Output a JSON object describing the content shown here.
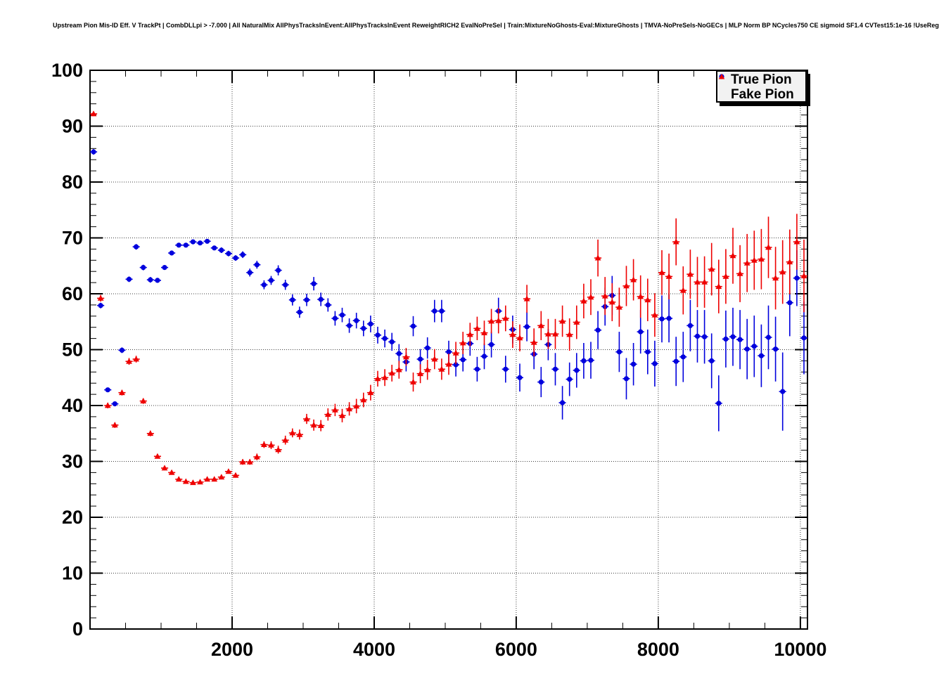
{
  "chart_data": {
    "type": "scatter",
    "title": "Upstream Pion Mis-ID Eff. V TrackPt | CombDLLpi > -7.000 | All NaturalMix AllPhysTracksInEvent:AllPhysTracksInEvent ReweightRICH2 EvalNoPreSel | Train:MixtureNoGhosts-Eval:MixtureGhosts | TMVA-NoPreSels-NoGECs | MLP Norm BP NCycles750 CE sigmoid SF1.4 CVTest15:1e-16 !UseReg",
    "xlabel": "",
    "ylabel": "",
    "xlim": [
      0,
      10100
    ],
    "ylim": [
      0,
      100
    ],
    "x_major_ticks": [
      2000,
      4000,
      6000,
      8000,
      10000
    ],
    "x_minor_step": 500,
    "y_major_step": 10,
    "y_minor_step": 2,
    "y_tick_labels": [
      "0",
      "10",
      "20",
      "30",
      "40",
      "50",
      "60",
      "70",
      "80",
      "90",
      "100"
    ],
    "grid": "dotted",
    "frame_color": "#000000",
    "legend": {
      "position": "top-right",
      "entries": [
        {
          "label": "True Pion",
          "marker": "circle",
          "color": "#0000dd"
        },
        {
          "label": "Fake Pion",
          "marker": "triangle",
          "color": "#ee0000"
        }
      ]
    },
    "series": [
      {
        "name": "True Pion",
        "marker": "circle",
        "color": "#0000dd",
        "xerr": 50,
        "points": [
          [
            50,
            85.4,
            0.5
          ],
          [
            150,
            57.9,
            0.5
          ],
          [
            250,
            42.8,
            0.4
          ],
          [
            350,
            40.3,
            0.4
          ],
          [
            450,
            49.9,
            0.5
          ],
          [
            550,
            62.6,
            0.5
          ],
          [
            650,
            68.4,
            0.5
          ],
          [
            750,
            64.7,
            0.5
          ],
          [
            850,
            62.5,
            0.5
          ],
          [
            950,
            62.4,
            0.4
          ],
          [
            1050,
            64.7,
            0.4
          ],
          [
            1150,
            67.3,
            0.4
          ],
          [
            1250,
            68.7,
            0.4
          ],
          [
            1350,
            68.7,
            0.4
          ],
          [
            1450,
            69.3,
            0.4
          ],
          [
            1550,
            69.1,
            0.4
          ],
          [
            1650,
            69.4,
            0.4
          ],
          [
            1750,
            68.2,
            0.4
          ],
          [
            1850,
            67.8,
            0.5
          ],
          [
            1950,
            67.2,
            0.5
          ],
          [
            2050,
            66.4,
            0.5
          ],
          [
            2150,
            67.0,
            0.6
          ],
          [
            2250,
            63.8,
            0.7
          ],
          [
            2350,
            65.2,
            0.7
          ],
          [
            2450,
            61.6,
            0.8
          ],
          [
            2550,
            62.4,
            0.8
          ],
          [
            2650,
            64.2,
            0.9
          ],
          [
            2750,
            61.6,
            0.9
          ],
          [
            2850,
            58.9,
            1.0
          ],
          [
            2950,
            56.7,
            1.0
          ],
          [
            3050,
            58.9,
            1.1
          ],
          [
            3150,
            61.8,
            1.2
          ],
          [
            3250,
            59.0,
            1.2
          ],
          [
            3350,
            58.0,
            1.2
          ],
          [
            3450,
            55.6,
            1.3
          ],
          [
            3550,
            56.2,
            1.3
          ],
          [
            3650,
            54.3,
            1.3
          ],
          [
            3750,
            55.2,
            1.4
          ],
          [
            3850,
            53.8,
            1.4
          ],
          [
            3950,
            54.6,
            1.5
          ],
          [
            4050,
            52.6,
            1.5
          ],
          [
            4150,
            52.0,
            1.6
          ],
          [
            4250,
            51.4,
            1.6
          ],
          [
            4350,
            49.3,
            1.7
          ],
          [
            4450,
            47.8,
            1.7
          ],
          [
            4550,
            54.2,
            1.8
          ],
          [
            4650,
            48.3,
            1.8
          ],
          [
            4750,
            50.3,
            1.9
          ],
          [
            4850,
            56.9,
            2.0
          ],
          [
            4950,
            56.9,
            2.0
          ],
          [
            5050,
            49.6,
            2.0
          ],
          [
            5150,
            47.3,
            2.1
          ],
          [
            5250,
            48.2,
            2.1
          ],
          [
            5350,
            51.1,
            2.2
          ],
          [
            5450,
            46.5,
            2.2
          ],
          [
            5550,
            48.8,
            2.3
          ],
          [
            5650,
            50.9,
            2.3
          ],
          [
            5750,
            56.9,
            2.4
          ],
          [
            5850,
            46.5,
            2.4
          ],
          [
            5950,
            53.6,
            2.5
          ],
          [
            6050,
            45.0,
            2.5
          ],
          [
            6150,
            54.1,
            2.6
          ],
          [
            6250,
            49.2,
            2.7
          ],
          [
            6350,
            44.2,
            2.7
          ],
          [
            6450,
            50.9,
            2.8
          ],
          [
            6550,
            46.5,
            2.9
          ],
          [
            6650,
            40.5,
            3.0
          ],
          [
            6750,
            44.7,
            3.0
          ],
          [
            6850,
            46.3,
            3.1
          ],
          [
            6950,
            48.0,
            3.2
          ],
          [
            7050,
            48.1,
            3.3
          ],
          [
            7150,
            53.5,
            3.4
          ],
          [
            7250,
            57.7,
            3.4
          ],
          [
            7350,
            59.7,
            3.5
          ],
          [
            7450,
            49.6,
            3.6
          ],
          [
            7550,
            44.8,
            3.7
          ],
          [
            7650,
            47.4,
            3.8
          ],
          [
            7750,
            53.2,
            3.9
          ],
          [
            7850,
            49.6,
            4.0
          ],
          [
            7950,
            47.5,
            4.1
          ],
          [
            8050,
            55.5,
            4.2
          ],
          [
            8150,
            55.6,
            4.3
          ],
          [
            8250,
            47.9,
            4.4
          ],
          [
            8350,
            48.7,
            4.5
          ],
          [
            8450,
            54.3,
            4.6
          ],
          [
            8550,
            52.4,
            4.7
          ],
          [
            8650,
            52.3,
            4.8
          ],
          [
            8750,
            48.0,
            4.9
          ],
          [
            8850,
            40.4,
            5.0
          ],
          [
            8950,
            51.9,
            5.1
          ],
          [
            9050,
            52.3,
            5.2
          ],
          [
            9150,
            51.8,
            5.3
          ],
          [
            9250,
            50.1,
            5.4
          ],
          [
            9350,
            50.6,
            5.5
          ],
          [
            9450,
            48.9,
            5.6
          ],
          [
            9550,
            52.2,
            5.7
          ],
          [
            9650,
            50.1,
            5.8
          ],
          [
            9750,
            42.5,
            7.0
          ],
          [
            9850,
            58.4,
            6.0
          ],
          [
            9950,
            62.8,
            5.0
          ],
          [
            10050,
            52.1,
            6.5
          ]
        ]
      },
      {
        "name": "Fake Pion",
        "marker": "triangle",
        "color": "#ee0000",
        "xerr": 50,
        "points": [
          [
            50,
            92.2,
            0.4
          ],
          [
            150,
            59.2,
            0.6
          ],
          [
            250,
            40.0,
            0.5
          ],
          [
            350,
            36.5,
            0.5
          ],
          [
            450,
            42.3,
            0.5
          ],
          [
            550,
            47.9,
            0.6
          ],
          [
            650,
            48.3,
            0.6
          ],
          [
            750,
            40.8,
            0.5
          ],
          [
            850,
            35.0,
            0.5
          ],
          [
            950,
            30.9,
            0.4
          ],
          [
            1050,
            28.8,
            0.4
          ],
          [
            1150,
            28.0,
            0.3
          ],
          [
            1250,
            26.8,
            0.3
          ],
          [
            1350,
            26.4,
            0.3
          ],
          [
            1450,
            26.2,
            0.3
          ],
          [
            1550,
            26.3,
            0.3
          ],
          [
            1650,
            26.8,
            0.3
          ],
          [
            1750,
            26.8,
            0.3
          ],
          [
            1850,
            27.2,
            0.4
          ],
          [
            1950,
            28.2,
            0.4
          ],
          [
            2050,
            27.5,
            0.4
          ],
          [
            2150,
            29.9,
            0.5
          ],
          [
            2250,
            29.9,
            0.5
          ],
          [
            2350,
            30.8,
            0.6
          ],
          [
            2450,
            33.0,
            0.6
          ],
          [
            2550,
            32.9,
            0.7
          ],
          [
            2650,
            32.1,
            0.7
          ],
          [
            2750,
            33.8,
            0.8
          ],
          [
            2850,
            35.1,
            0.8
          ],
          [
            2950,
            34.8,
            0.9
          ],
          [
            3050,
            37.6,
            0.9
          ],
          [
            3150,
            36.5,
            1.0
          ],
          [
            3250,
            36.4,
            1.0
          ],
          [
            3350,
            38.4,
            1.1
          ],
          [
            3450,
            39.2,
            1.1
          ],
          [
            3550,
            38.2,
            1.2
          ],
          [
            3650,
            39.4,
            1.2
          ],
          [
            3750,
            39.9,
            1.3
          ],
          [
            3850,
            41.0,
            1.3
          ],
          [
            3950,
            42.3,
            1.4
          ],
          [
            4050,
            44.8,
            1.4
          ],
          [
            4150,
            45.0,
            1.5
          ],
          [
            4250,
            45.8,
            1.5
          ],
          [
            4350,
            46.4,
            1.6
          ],
          [
            4450,
            48.7,
            1.6
          ],
          [
            4550,
            44.2,
            1.7
          ],
          [
            4650,
            45.7,
            1.7
          ],
          [
            4750,
            46.4,
            1.8
          ],
          [
            4850,
            48.3,
            1.8
          ],
          [
            4950,
            46.5,
            1.9
          ],
          [
            5050,
            47.4,
            1.9
          ],
          [
            5150,
            49.4,
            2.0
          ],
          [
            5250,
            51.2,
            2.0
          ],
          [
            5350,
            52.7,
            2.1
          ],
          [
            5450,
            53.8,
            2.1
          ],
          [
            5550,
            53.0,
            2.2
          ],
          [
            5650,
            55.1,
            2.2
          ],
          [
            5750,
            55.2,
            2.3
          ],
          [
            5850,
            55.6,
            2.3
          ],
          [
            5950,
            52.7,
            2.4
          ],
          [
            6050,
            52.1,
            2.4
          ],
          [
            6150,
            59.1,
            2.5
          ],
          [
            6250,
            51.3,
            2.5
          ],
          [
            6350,
            54.3,
            2.6
          ],
          [
            6450,
            52.8,
            2.7
          ],
          [
            6550,
            52.8,
            2.7
          ],
          [
            6650,
            55.1,
            2.8
          ],
          [
            6750,
            52.7,
            2.9
          ],
          [
            6850,
            54.9,
            3.0
          ],
          [
            6950,
            58.7,
            3.1
          ],
          [
            7050,
            59.4,
            3.2
          ],
          [
            7150,
            66.4,
            3.3
          ],
          [
            7250,
            59.6,
            3.4
          ],
          [
            7350,
            58.5,
            3.4
          ],
          [
            7450,
            57.6,
            3.5
          ],
          [
            7550,
            61.4,
            3.6
          ],
          [
            7650,
            62.5,
            3.7
          ],
          [
            7750,
            59.5,
            3.8
          ],
          [
            7850,
            58.9,
            3.8
          ],
          [
            7950,
            56.2,
            3.9
          ],
          [
            8050,
            63.8,
            4.0
          ],
          [
            8150,
            63.1,
            4.1
          ],
          [
            8250,
            69.3,
            4.2
          ],
          [
            8350,
            60.6,
            4.3
          ],
          [
            8450,
            63.5,
            4.4
          ],
          [
            8550,
            62.1,
            4.5
          ],
          [
            8650,
            62.1,
            4.6
          ],
          [
            8750,
            64.4,
            4.7
          ],
          [
            8850,
            61.3,
            4.8
          ],
          [
            8950,
            63.1,
            4.9
          ],
          [
            9050,
            66.8,
            5.0
          ],
          [
            9150,
            63.6,
            5.1
          ],
          [
            9250,
            65.5,
            5.2
          ],
          [
            9350,
            66.0,
            5.3
          ],
          [
            9450,
            66.2,
            5.4
          ],
          [
            9550,
            68.3,
            5.5
          ],
          [
            9650,
            62.8,
            5.6
          ],
          [
            9750,
            63.9,
            5.7
          ],
          [
            9850,
            65.7,
            5.8
          ],
          [
            9950,
            69.3,
            5.0
          ],
          [
            10050,
            63.2,
            6.5
          ]
        ]
      }
    ]
  }
}
